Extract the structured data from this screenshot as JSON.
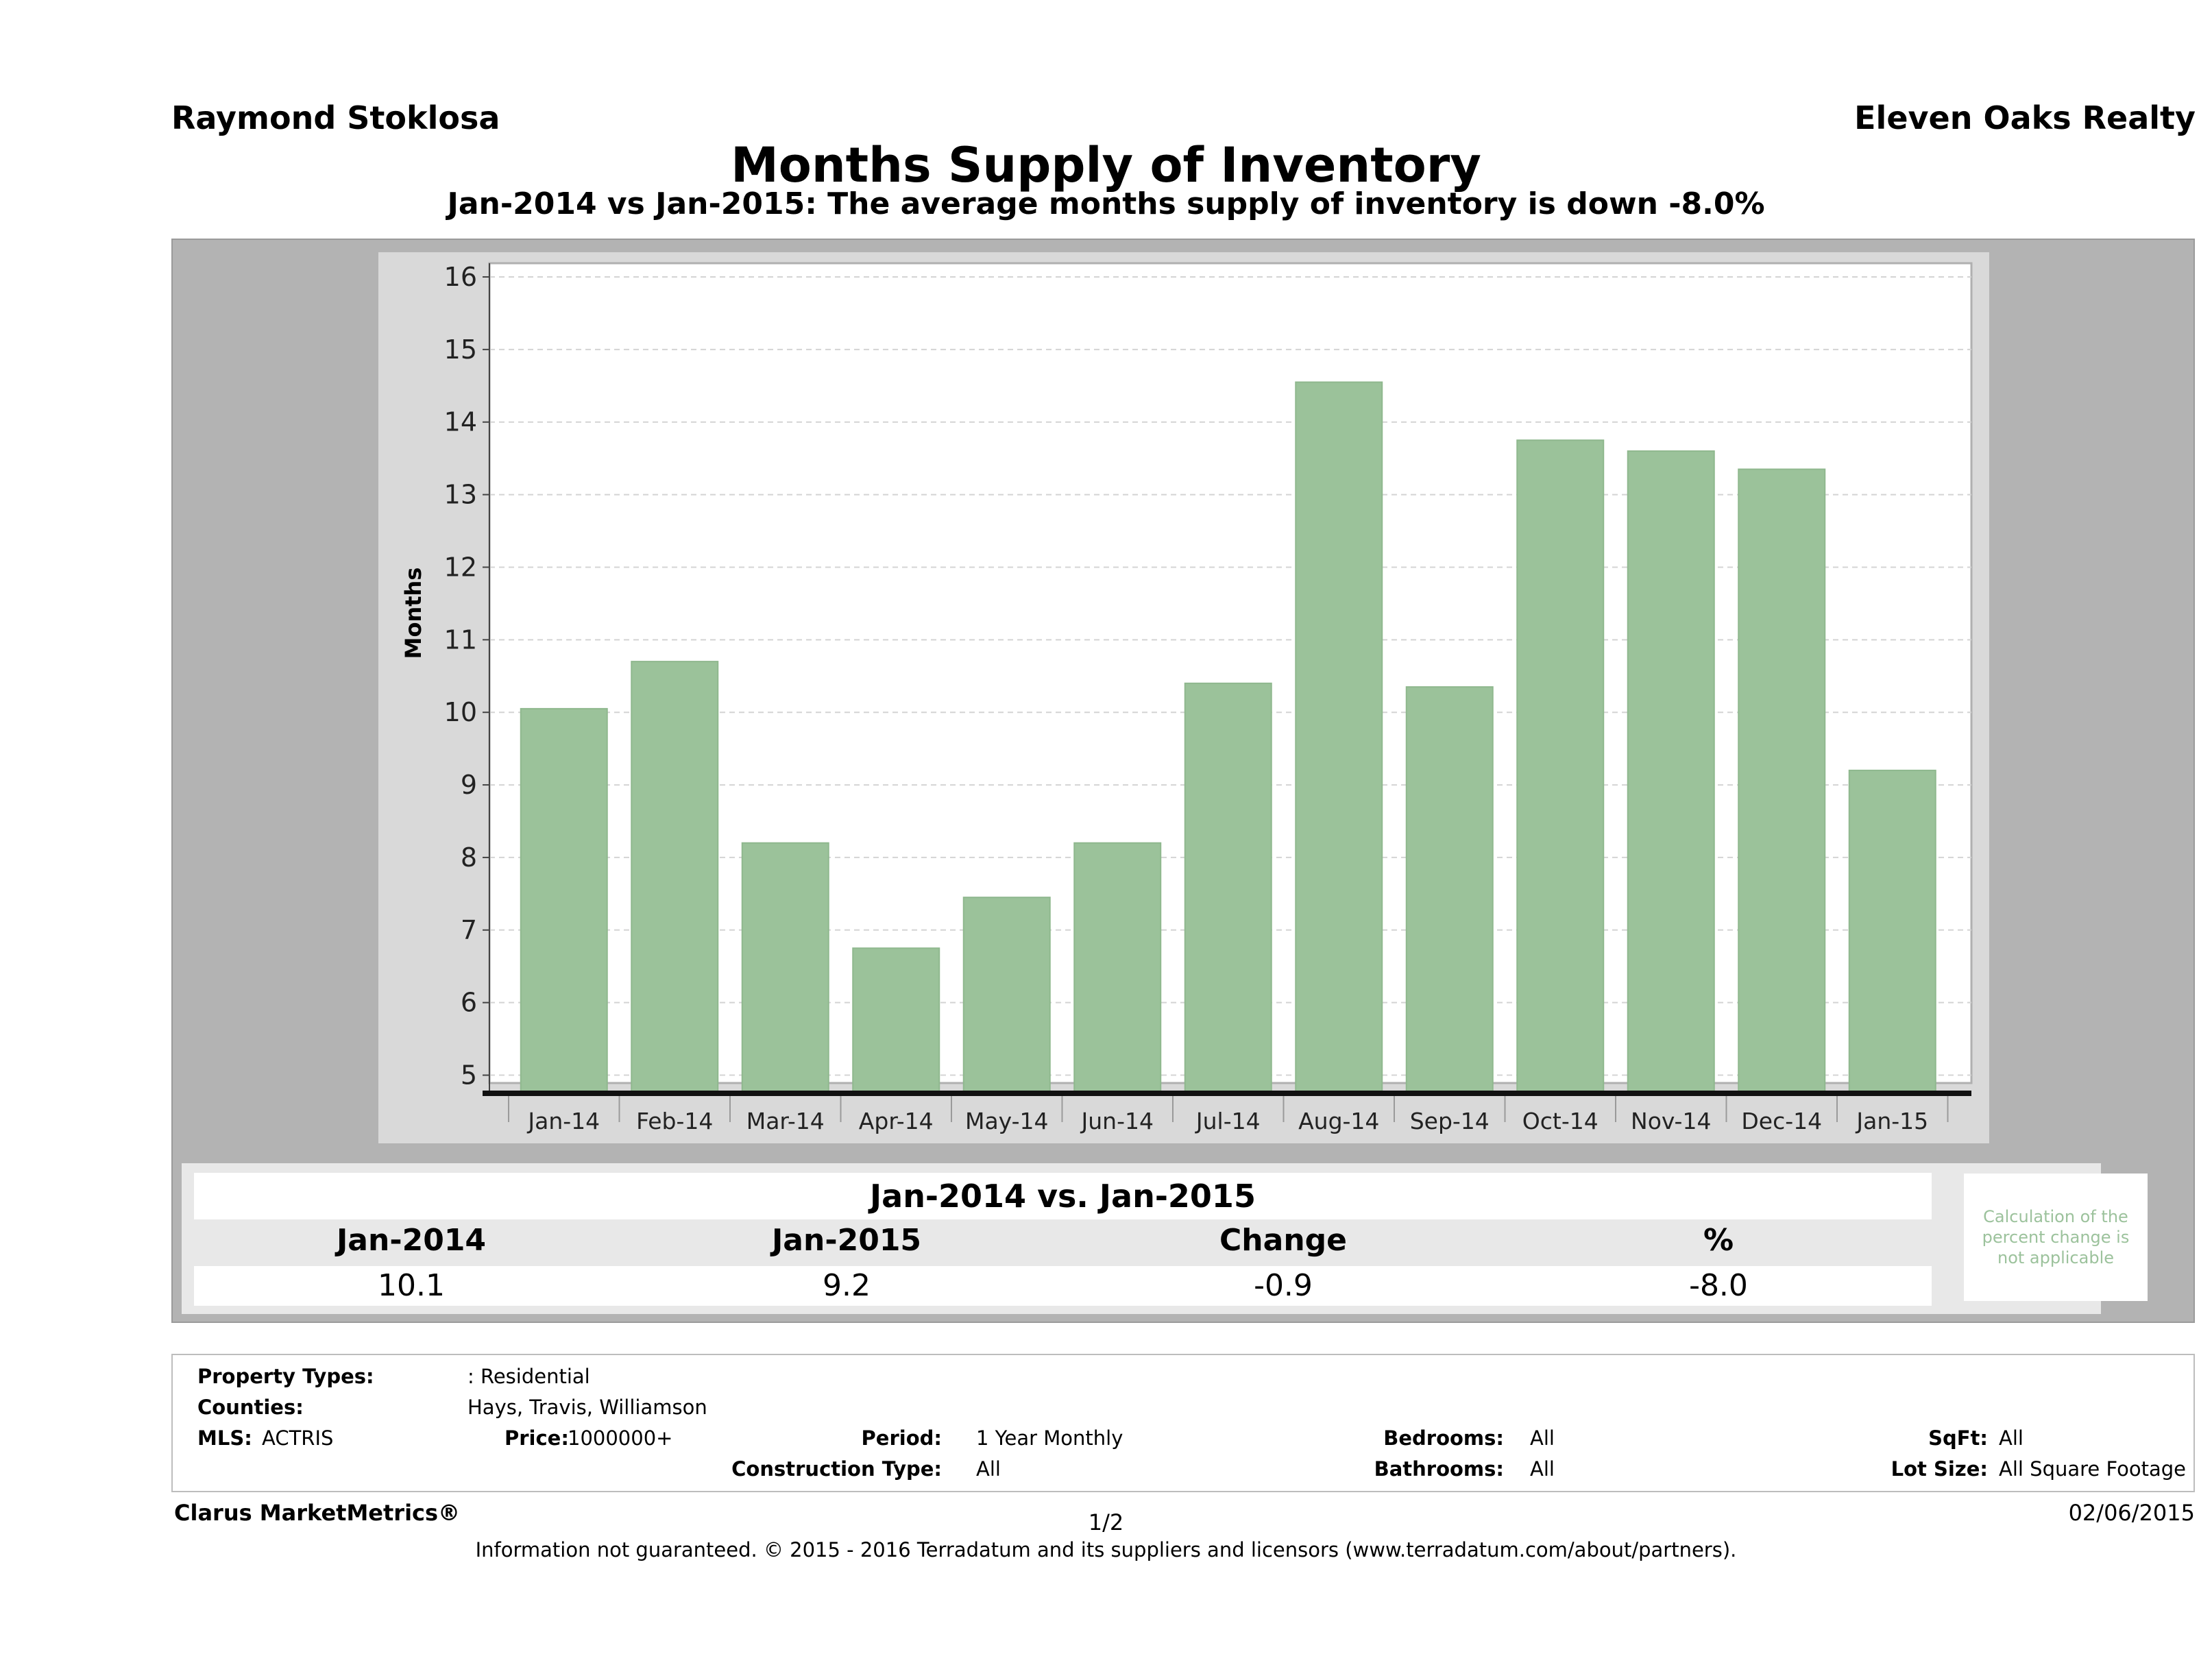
{
  "header": {
    "agent": "Raymond Stoklosa",
    "company": "Eleven Oaks Realty",
    "title": "Months Supply of Inventory",
    "subtitle": "Jan-2014 vs Jan-2015: The average months supply of inventory is down -8.0%"
  },
  "chart_data": {
    "type": "bar",
    "title": "Months Supply of Inventory",
    "ylabel": "Months",
    "xlabel": "",
    "categories": [
      "Jan-14",
      "Feb-14",
      "Mar-14",
      "Apr-14",
      "May-14",
      "Jun-14",
      "Jul-14",
      "Aug-14",
      "Sep-14",
      "Oct-14",
      "Nov-14",
      "Dec-14",
      "Jan-15"
    ],
    "values": [
      10.05,
      10.7,
      8.2,
      6.75,
      7.45,
      8.2,
      10.4,
      14.55,
      10.35,
      13.75,
      13.6,
      13.35,
      9.2
    ],
    "ylim": [
      4.75,
      16
    ],
    "yticks": [
      5,
      6,
      7,
      8,
      9,
      10,
      11,
      12,
      13,
      14,
      15,
      16
    ],
    "grid": true,
    "bar_color": "#9bc29a"
  },
  "summary": {
    "heading": "Jan-2014 vs. Jan-2015",
    "columns": [
      "Jan-2014",
      "Jan-2015",
      "Change",
      "%"
    ],
    "values": [
      "10.1",
      "9.2",
      "-0.9",
      "-8.0"
    ],
    "note": "Calculation of the percent change is not applicable"
  },
  "info": {
    "property_types_label": "Property Types:",
    "property_types_value": ": Residential",
    "counties_label": "Counties:",
    "counties_value": "Hays, Travis, Williamson",
    "mls_label": "MLS:",
    "mls_value": "ACTRIS",
    "price_label": "Price:",
    "price_value": "1000000+",
    "period_label": "Period:",
    "period_value": "1 Year Monthly",
    "construction_label": "Construction Type:",
    "construction_value": "All",
    "bedrooms_label": "Bedrooms:",
    "bedrooms_value": "All",
    "bathrooms_label": "Bathrooms:",
    "bathrooms_value": "All",
    "sqft_label": "SqFt:",
    "sqft_value": "All",
    "lotsize_label": "Lot Size:",
    "lotsize_value": "All Square Footage"
  },
  "footer": {
    "brand": "Clarus MarketMetrics®",
    "page": "1/2",
    "date": "02/06/2015",
    "disclaimer": "Information not guaranteed. © 2015 - 2016 Terradatum and its suppliers and licensors (www.terradatum.com/about/partners)."
  }
}
